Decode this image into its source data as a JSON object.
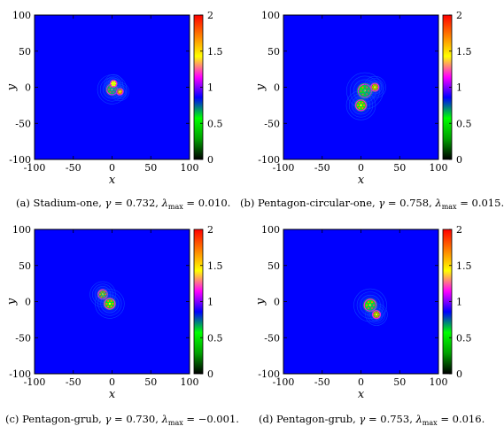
{
  "colorbar": {
    "ticks": [
      "0",
      "0.5",
      "1",
      "1.5",
      "2"
    ],
    "range": [
      0,
      2
    ],
    "palette": [
      "#000000",
      "#00a000",
      "#00ff00",
      "#0000ff",
      "#ff00ff",
      "#ffff00",
      "#ff7f00",
      "#ff0000"
    ]
  },
  "field_color": "#0000ff",
  "chart_data": [
    {
      "type": "heatmap",
      "panel": "a",
      "xlabel": "x",
      "ylabel": "y",
      "xlim": [
        -100,
        100
      ],
      "ylim": [
        -100,
        100
      ],
      "xticks": [
        "-100",
        "-50",
        "0",
        "50",
        "100"
      ],
      "yticks": [
        "-100",
        "-50",
        "0",
        "50",
        "100"
      ],
      "zlim": [
        0,
        2
      ],
      "background_value": 0.6,
      "spots": [
        {
          "x": 0,
          "y": -3,
          "r": 8,
          "peak": 1.8
        },
        {
          "x": 10,
          "y": -6,
          "r": 5,
          "peak": 1.6
        },
        {
          "x": 2,
          "y": 5,
          "r": 5,
          "peak": 1.5
        }
      ],
      "caption": {
        "label": "(a) Stadium-one, ",
        "gamma": "0.732",
        "lambda": "0.010"
      }
    },
    {
      "type": "heatmap",
      "panel": "b",
      "xlabel": "x",
      "ylabel": "y",
      "xlim": [
        -100,
        100
      ],
      "ylim": [
        -100,
        100
      ],
      "xticks": [
        "-100",
        "-50",
        "0",
        "50",
        "100"
      ],
      "yticks": [
        "-100",
        "-50",
        "0",
        "50",
        "100"
      ],
      "zlim": [
        0,
        2
      ],
      "background_value": 0.6,
      "spots": [
        {
          "x": 5,
          "y": -5,
          "r": 10,
          "peak": 1.8
        },
        {
          "x": 18,
          "y": 0,
          "r": 6,
          "peak": 1.6
        },
        {
          "x": 0,
          "y": -25,
          "r": 8,
          "peak": 1.7
        }
      ],
      "caption": {
        "label": "(b) Pentagon-circular-one, ",
        "gamma": "0.758",
        "lambda": "0.015"
      }
    },
    {
      "type": "heatmap",
      "panel": "c",
      "xlabel": "x",
      "ylabel": "y",
      "xlim": [
        -100,
        100
      ],
      "ylim": [
        -100,
        100
      ],
      "xticks": [
        "-100",
        "-50",
        "0",
        "50",
        "100"
      ],
      "yticks": [
        "-100",
        "-50",
        "0",
        "50",
        "100"
      ],
      "zlim": [
        0,
        2
      ],
      "background_value": 0.6,
      "spots": [
        {
          "x": -12,
          "y": 10,
          "r": 7,
          "peak": 1.7
        },
        {
          "x": -3,
          "y": -3,
          "r": 8,
          "peak": 1.7
        }
      ],
      "caption": {
        "label": "(c) Pentagon-grub, ",
        "gamma": "0.730",
        "lambda": "−0.001"
      }
    },
    {
      "type": "heatmap",
      "panel": "d",
      "xlabel": "x",
      "ylabel": "y",
      "xlim": [
        -100,
        100
      ],
      "ylim": [
        -100,
        100
      ],
      "xticks": [
        "-100",
        "-50",
        "0",
        "50",
        "100"
      ],
      "yticks": [
        "-100",
        "-50",
        "0",
        "50",
        "100"
      ],
      "zlim": [
        0,
        2
      ],
      "background_value": 0.6,
      "spots": [
        {
          "x": 12,
          "y": -5,
          "r": 9,
          "peak": 1.8
        },
        {
          "x": 20,
          "y": -18,
          "r": 6,
          "peak": 1.6
        }
      ],
      "caption": {
        "label": "(d) Pentagon-grub, ",
        "gamma": "0.753",
        "lambda": "0.016"
      }
    }
  ]
}
